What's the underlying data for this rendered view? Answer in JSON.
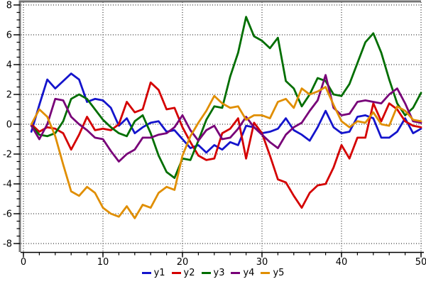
{
  "chart_data": {
    "type": "line",
    "title": "",
    "xlabel": "",
    "ylabel": "",
    "xlim": [
      0,
      50
    ],
    "ylim": [
      -8,
      8
    ],
    "x_major_ticks": [
      0,
      10,
      20,
      30,
      40,
      50
    ],
    "x_minor_step": 2,
    "y_major_ticks": [
      8,
      6,
      4,
      2,
      0,
      -2,
      -4,
      -6,
      -8
    ],
    "y_minor_step": 0.5,
    "grid": "dotted",
    "legend_position": "bottom-center",
    "background": "#ffffff",
    "frame_color": "#757575",
    "axis_color": "#000000",
    "x_start": 1,
    "series": [
      {
        "name": "y1",
        "color": "#1414cc",
        "values": [
          -0.5,
          1.3,
          3.0,
          2.4,
          2.9,
          3.4,
          3.0,
          1.5,
          1.7,
          1.6,
          1.1,
          -0.1,
          0.4,
          -0.6,
          -0.2,
          0.1,
          0.2,
          -0.5,
          -0.4,
          -1.0,
          -1.6,
          -1.4,
          -1.9,
          -1.4,
          -1.7,
          -1.2,
          -1.4,
          -0.1,
          -0.2,
          -0.6,
          -0.5,
          -0.3,
          0.4,
          -0.4,
          -0.7,
          -1.1,
          -0.2,
          0.9,
          -0.2,
          -0.6,
          -0.5,
          0.5,
          0.6,
          0.4,
          -0.9,
          -0.9,
          -0.5,
          0.4,
          -0.6,
          -0.3
        ]
      },
      {
        "name": "y2",
        "color": "#d40000",
        "values": [
          0.0,
          -0.5,
          -0.2,
          -0.3,
          -0.6,
          -1.7,
          -0.7,
          0.5,
          -0.4,
          -0.3,
          -0.4,
          0.0,
          1.5,
          0.8,
          1.0,
          2.8,
          2.3,
          1.0,
          1.1,
          -0.2,
          -1.2,
          -2.1,
          -2.4,
          -2.3,
          -0.6,
          -0.3,
          0.4,
          -2.3,
          0.1,
          -0.6,
          -2.1,
          -3.7,
          -3.9,
          -4.8,
          -5.6,
          -4.6,
          -4.1,
          -4.0,
          -2.9,
          -1.4,
          -2.3,
          -0.9,
          -0.9,
          1.4,
          0.2,
          1.4,
          1.0,
          0.2,
          -0.1,
          -0.2
        ]
      },
      {
        "name": "y3",
        "color": "#006e00",
        "values": [
          -0.1,
          -0.7,
          -0.8,
          -0.6,
          0.2,
          1.7,
          2.0,
          1.7,
          1.0,
          0.3,
          -0.2,
          -0.6,
          -0.8,
          0.2,
          0.6,
          -0.6,
          -2.1,
          -3.2,
          -3.6,
          -2.3,
          -2.4,
          -1.1,
          0.3,
          1.2,
          1.1,
          3.2,
          4.8,
          7.2,
          5.9,
          5.6,
          5.1,
          5.8,
          2.9,
          2.4,
          1.2,
          2.0,
          3.1,
          2.9,
          2.0,
          1.9,
          2.7,
          4.1,
          5.5,
          6.1,
          4.8,
          3.0,
          1.4,
          0.6,
          1.1,
          2.1
        ]
      },
      {
        "name": "y4",
        "color": "#780078",
        "values": [
          -0.1,
          -1.0,
          0.0,
          1.7,
          1.6,
          0.5,
          0.0,
          -0.4,
          -0.9,
          -1.0,
          -1.8,
          -2.5,
          -2.0,
          -1.7,
          -0.9,
          -0.9,
          -0.7,
          -0.6,
          -0.2,
          0.6,
          -0.4,
          -1.1,
          -0.4,
          -0.1,
          -1.0,
          -0.9,
          -0.3,
          0.5,
          -0.2,
          -0.7,
          -1.2,
          -1.6,
          -0.7,
          -0.2,
          0.1,
          0.9,
          1.6,
          3.3,
          1.1,
          0.6,
          0.7,
          1.5,
          1.6,
          1.5,
          1.4,
          2.0,
          2.4,
          1.4,
          0.2,
          0.1
        ]
      },
      {
        "name": "y5",
        "color": "#e08e00",
        "values": [
          0.0,
          1.0,
          0.5,
          -0.8,
          -2.7,
          -4.5,
          -4.8,
          -4.2,
          -4.6,
          -5.6,
          -6.0,
          -6.2,
          -5.5,
          -6.3,
          -5.4,
          -5.6,
          -4.6,
          -4.2,
          -4.4,
          -2.1,
          -0.8,
          0.1,
          0.9,
          1.9,
          1.4,
          1.1,
          1.2,
          0.3,
          0.6,
          0.6,
          0.4,
          1.5,
          1.7,
          1.1,
          2.4,
          2.0,
          2.2,
          2.5,
          1.3,
          0.2,
          -0.2,
          0.2,
          0.1,
          0.8,
          0.0,
          -0.1,
          1.2,
          0.9,
          0.3,
          0.2
        ]
      }
    ]
  }
}
